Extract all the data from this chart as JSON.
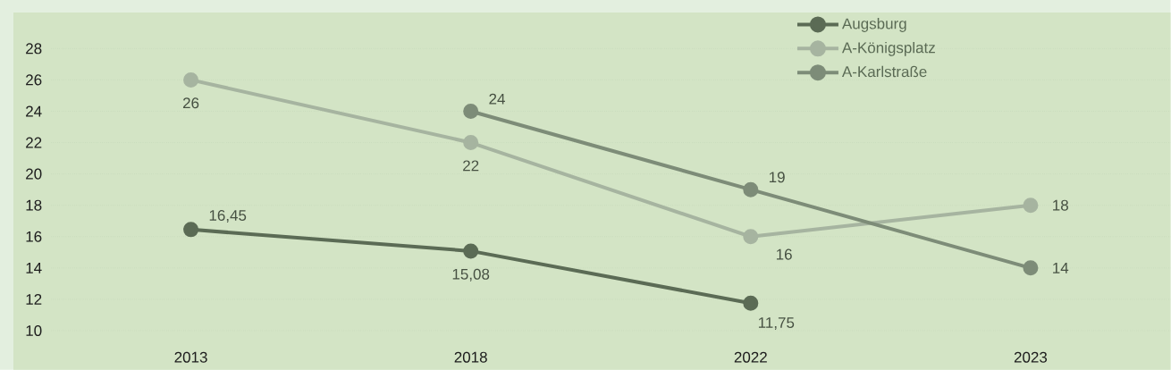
{
  "chart_data": {
    "type": "line",
    "categories": [
      "2013",
      "2018",
      "2022",
      "2023"
    ],
    "series": [
      {
        "name": "Augsburg",
        "color": "#5b6b55",
        "values": [
          16.45,
          15.08,
          11.75,
          null
        ],
        "value_labels": [
          "16,45",
          "15,08",
          "11,75",
          null
        ]
      },
      {
        "name": "A-Königsplatz",
        "color": "#a6b4a0",
        "values": [
          26,
          22,
          16,
          18
        ],
        "value_labels": [
          "26",
          "22",
          "16",
          "18"
        ]
      },
      {
        "name": "A-Karlstraße",
        "color": "#7d8c78",
        "values": [
          null,
          24,
          19,
          14
        ],
        "value_labels": [
          null,
          "24",
          "19",
          "14"
        ]
      }
    ],
    "ylim": [
      7.5,
      30.3
    ],
    "yticks": [
      10,
      12,
      14,
      16,
      18,
      20,
      22,
      24,
      26,
      28
    ],
    "grid": "y",
    "legend": "top right",
    "marker": "circle",
    "line_style": "solid"
  }
}
